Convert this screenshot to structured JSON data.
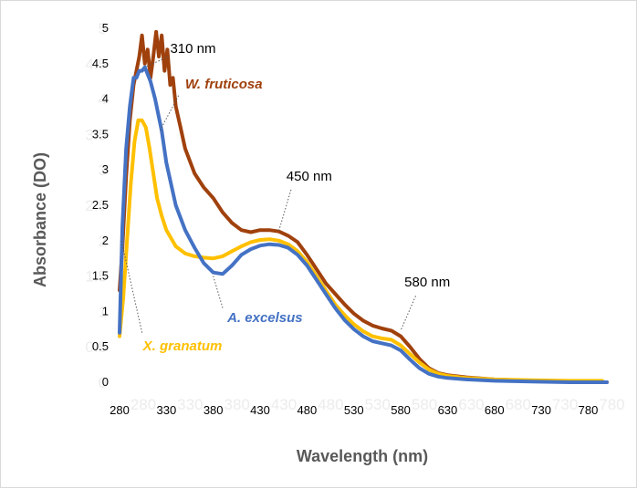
{
  "chart_data": {
    "type": "line",
    "xlabel": "Wavelength (nm)",
    "ylabel": "Absorbance (DO)",
    "xlim": [
      280,
      800
    ],
    "ylim": [
      0,
      5
    ],
    "xticks": [
      "280",
      "330",
      "380",
      "430",
      "480",
      "530",
      "580",
      "630",
      "680",
      "730",
      "780"
    ],
    "yticks": [
      "0",
      "0.5",
      "1",
      "1.5",
      "2",
      "2.5",
      "3",
      "3.5",
      "4",
      "4.5",
      "5"
    ],
    "ghost_yticks": [
      "0",
      "0.5",
      "1",
      "1.5",
      "2",
      "2.5",
      "3",
      "3.5",
      "4",
      "4.5",
      "5"
    ],
    "ghost_xticks": [
      "280",
      "330",
      "380",
      "430",
      "480",
      "530",
      "580",
      "630",
      "680",
      "730",
      "780"
    ],
    "grid": false,
    "legend": "inline labels",
    "series": [
      {
        "name": "W. fruticosa",
        "color": "#a0410d",
        "x": [
          280,
          283,
          287,
          291,
          295,
          298,
          301,
          304,
          307,
          310,
          313,
          316,
          319,
          322,
          325,
          328,
          331,
          334,
          337,
          340,
          345,
          350,
          360,
          370,
          380,
          390,
          400,
          410,
          420,
          430,
          440,
          450,
          460,
          470,
          480,
          490,
          500,
          510,
          520,
          530,
          540,
          550,
          560,
          570,
          580,
          590,
          600,
          610,
          620,
          630,
          650,
          680,
          720,
          760,
          800
        ],
        "y": [
          1.3,
          1.9,
          2.9,
          3.7,
          4.2,
          4.4,
          4.6,
          4.9,
          4.5,
          4.7,
          4.3,
          4.6,
          4.95,
          4.6,
          4.9,
          4.4,
          4.7,
          4.2,
          4.3,
          3.9,
          3.6,
          3.3,
          2.95,
          2.75,
          2.6,
          2.4,
          2.25,
          2.15,
          2.12,
          2.15,
          2.15,
          2.13,
          2.07,
          1.98,
          1.8,
          1.6,
          1.4,
          1.25,
          1.1,
          0.97,
          0.87,
          0.8,
          0.76,
          0.73,
          0.65,
          0.5,
          0.33,
          0.2,
          0.13,
          0.1,
          0.07,
          0.04,
          0.02,
          0.01,
          0.0
        ]
      },
      {
        "name": "A. excelsus",
        "color": "#4472c4",
        "x": [
          280,
          283,
          287,
          291,
          295,
          298,
          301,
          304,
          307,
          310,
          313,
          318,
          325,
          330,
          340,
          350,
          360,
          370,
          380,
          390,
          400,
          410,
          420,
          430,
          440,
          450,
          460,
          470,
          480,
          490,
          500,
          510,
          520,
          530,
          540,
          550,
          560,
          570,
          580,
          590,
          600,
          610,
          620,
          630,
          650,
          680,
          720,
          760,
          800
        ],
        "y": [
          0.7,
          2.2,
          3.3,
          3.9,
          4.3,
          4.3,
          4.4,
          4.4,
          4.45,
          4.35,
          4.25,
          4.0,
          3.55,
          3.1,
          2.5,
          2.15,
          1.9,
          1.68,
          1.55,
          1.53,
          1.65,
          1.8,
          1.88,
          1.93,
          1.95,
          1.94,
          1.9,
          1.8,
          1.65,
          1.45,
          1.25,
          1.05,
          0.88,
          0.75,
          0.65,
          0.58,
          0.55,
          0.52,
          0.45,
          0.32,
          0.2,
          0.12,
          0.08,
          0.06,
          0.04,
          0.02,
          0.01,
          0.0,
          0.0
        ]
      },
      {
        "name": "X. granatum",
        "color": "#ffc000",
        "x": [
          280,
          284,
          288,
          292,
          296,
          300,
          304,
          308,
          312,
          316,
          320,
          325,
          330,
          340,
          350,
          360,
          370,
          380,
          390,
          400,
          410,
          420,
          430,
          440,
          450,
          460,
          470,
          480,
          490,
          500,
          510,
          520,
          530,
          540,
          550,
          560,
          570,
          580,
          590,
          600,
          610,
          620,
          630,
          650,
          680,
          720,
          760,
          795
        ],
        "y": [
          0.65,
          1.2,
          2.0,
          2.8,
          3.4,
          3.7,
          3.7,
          3.6,
          3.3,
          2.95,
          2.6,
          2.35,
          2.15,
          1.92,
          1.82,
          1.78,
          1.76,
          1.75,
          1.78,
          1.85,
          1.92,
          1.98,
          2.01,
          2.02,
          2.0,
          1.95,
          1.85,
          1.7,
          1.5,
          1.3,
          1.1,
          0.95,
          0.82,
          0.72,
          0.65,
          0.62,
          0.6,
          0.52,
          0.4,
          0.28,
          0.18,
          0.12,
          0.09,
          0.06,
          0.04,
          0.03,
          0.02,
          0.02
        ]
      }
    ],
    "series_labels": [
      "W. fruticosa",
      "A. excelsus",
      "X. granatum"
    ],
    "annotations": [
      {
        "text": "310 nm",
        "target": [
          307,
          4.45
        ],
        "pos": "upper-right"
      },
      {
        "text": "450 nm",
        "target": [
          450,
          2.14
        ],
        "pos": "above"
      },
      {
        "text": "580 nm",
        "target": [
          580,
          0.73
        ],
        "pos": "above-right"
      }
    ]
  }
}
